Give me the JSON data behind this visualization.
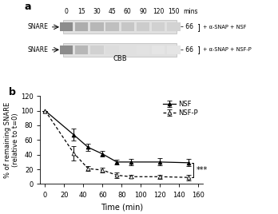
{
  "panel_a": {
    "time_points": [
      "0",
      "15",
      "30",
      "45",
      "60",
      "90",
      "120",
      "150"
    ],
    "label": "a",
    "cbb_label": "CBB",
    "row1_annotation": "+ α-SNAP + NSF",
    "row2_annotation": "+ α-SNAP + NSF-P",
    "marker_value": "66",
    "mins_label": "mins",
    "nsf_band_gray": [
      0.55,
      0.68,
      0.72,
      0.75,
      0.78,
      0.8,
      0.82,
      0.83
    ],
    "nsfp_band_gray": [
      0.55,
      0.72,
      0.82,
      0.87,
      0.88,
      0.89,
      0.9,
      0.9
    ],
    "gel_bg_gray": 0.88
  },
  "panel_b": {
    "label": "b",
    "nsf_x": [
      0,
      30,
      45,
      60,
      75,
      90,
      120,
      150
    ],
    "nsf_y": [
      100,
      67,
      50,
      41,
      30,
      30,
      30,
      29
    ],
    "nsf_yerr": [
      0,
      8,
      5,
      4,
      3,
      4,
      5,
      5
    ],
    "nsfp_x": [
      0,
      30,
      45,
      60,
      75,
      90,
      120,
      150
    ],
    "nsfp_y": [
      100,
      42,
      21,
      19,
      12,
      10,
      10,
      9
    ],
    "nsfp_yerr": [
      0,
      10,
      3,
      3,
      4,
      2,
      3,
      4
    ],
    "xlabel": "Time (min)",
    "ylabel": "% of remaining SNARE\n(relative to t=0)",
    "ylim": [
      0,
      120
    ],
    "xlim": [
      -5,
      165
    ],
    "yticks": [
      0,
      20,
      40,
      60,
      80,
      100,
      120
    ],
    "xticks": [
      0,
      20,
      40,
      60,
      80,
      100,
      120,
      140,
      160
    ],
    "significance": "***",
    "legend_nsf": "NSF",
    "legend_nsfp": "NSF-P"
  },
  "figure_bg": "#ffffff"
}
